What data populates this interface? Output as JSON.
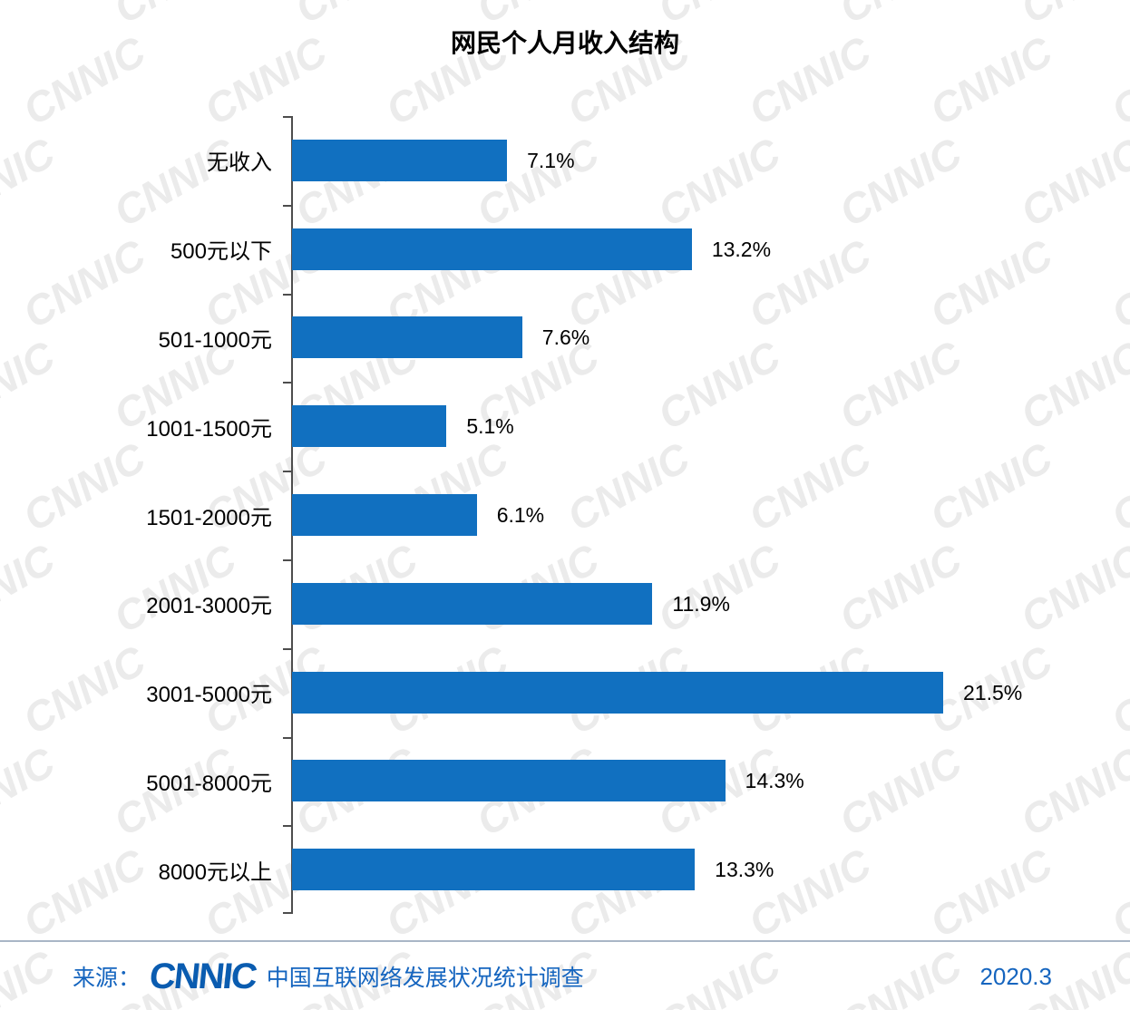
{
  "watermark": {
    "text": "CNNIC"
  },
  "chart_data": {
    "type": "bar",
    "orientation": "horizontal",
    "title": "网民个人月收入结构",
    "categories": [
      "无收入",
      "500元以下",
      "501-1000元",
      "1001-1500元",
      "1501-2000元",
      "2001-3000元",
      "3001-5000元",
      "5001-8000元",
      "8000元以上"
    ],
    "values": [
      7.1,
      13.2,
      7.6,
      5.1,
      6.1,
      11.9,
      21.5,
      14.3,
      13.3
    ],
    "labels": [
      "7.1%",
      "13.2%",
      "7.6%",
      "5.1%",
      "6.1%",
      "11.9%",
      "21.5%",
      "14.3%",
      "13.3%"
    ],
    "xlabel": "",
    "ylabel": "",
    "xlim": [
      0,
      22.5
    ],
    "grid": false,
    "legend": "none",
    "bar_color": "#1170c0"
  },
  "footer": {
    "source_label": "来源：",
    "logo_text": "CNNIC",
    "source_name": "中国互联网络发展状况统计调查",
    "date": "2020.3"
  }
}
